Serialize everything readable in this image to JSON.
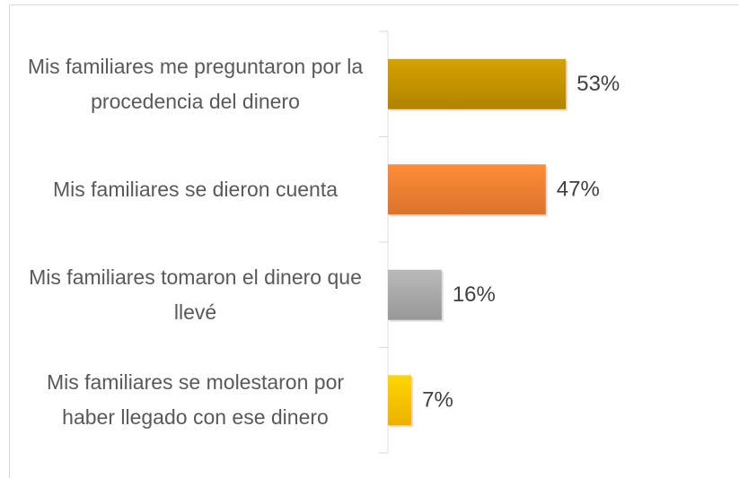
{
  "chart_data": {
    "type": "hbar",
    "categories": [
      "Mis familiares me preguntaron por la procedencia del dinero",
      "Mis familiares se dieron cuenta",
      "Mis familiares tomaron el dinero que llevé",
      "Mis familiares se molestaron por haber llegado con ese dinero"
    ],
    "values": [
      53,
      47,
      16,
      7
    ],
    "value_labels": [
      "53%",
      "47%",
      "16%",
      "7%"
    ],
    "colors": [
      "#bf9000",
      "#ed7d31",
      "#a5a5a5",
      "#ffc000"
    ]
  }
}
